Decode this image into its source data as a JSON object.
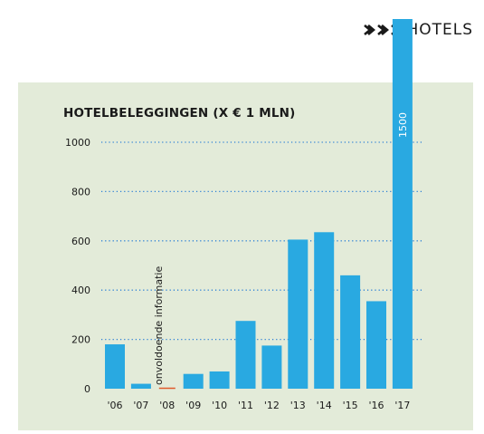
{
  "header": {
    "title": "HOTELS",
    "arrow_count": 3,
    "arrow_icon": "double-chevron-right-icon"
  },
  "colors": {
    "bar": "#29a9e1",
    "panel": "#e3ebd9",
    "grid": "#2b7fd6",
    "missing": "#e05a2a",
    "text": "#1a1a1a"
  },
  "chart_data": {
    "type": "bar",
    "title": "HOTELBELEGGINGEN (X € 1 MLN)",
    "xlabel": "",
    "ylabel": "",
    "categories": [
      "'06",
      "'07",
      "'08",
      "'09",
      "'10",
      "'11",
      "'12",
      "'13",
      "'14",
      "'15",
      "'16",
      "'17"
    ],
    "values": [
      180,
      20,
      null,
      60,
      70,
      275,
      175,
      605,
      635,
      460,
      355,
      1500
    ],
    "ylim": [
      0,
      1000
    ],
    "yticks": [
      0,
      200,
      400,
      600,
      800,
      1000
    ],
    "grid": true,
    "data_labels": [
      null,
      null,
      null,
      null,
      null,
      null,
      null,
      null,
      null,
      null,
      null,
      "1500"
    ],
    "annotations": [
      {
        "category": "'08",
        "text": "onvoldoende informatie"
      }
    ]
  }
}
